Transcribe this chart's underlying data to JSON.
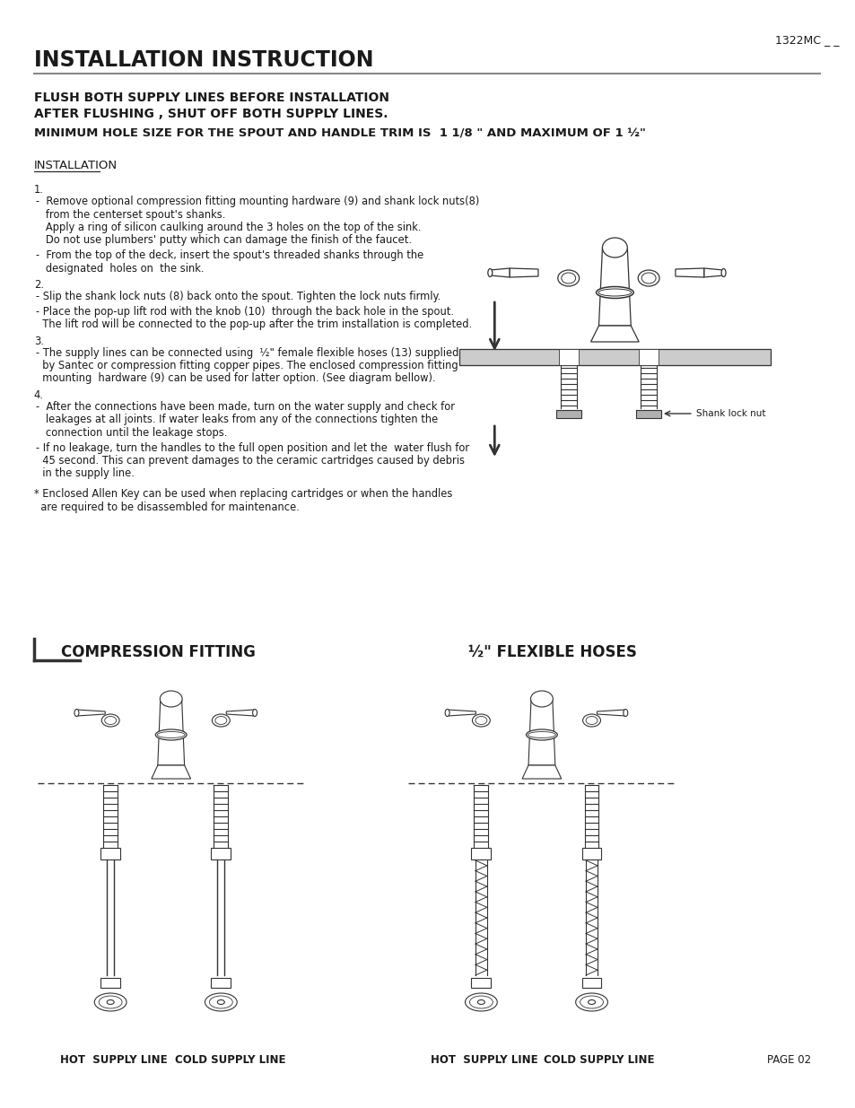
{
  "bg_color": "#ffffff",
  "page_width": 9.54,
  "page_height": 12.35,
  "model_number": "1322MC _ _",
  "title": "INSTALLATION INSTRUCTION",
  "header_lines": [
    "FLUSH BOTH SUPPLY LINES BEFORE INSTALLATION",
    "AFTER FLUSHING , SHUT OFF BOTH SUPPLY LINES.",
    "MINIMUM HOLE SIZE FOR THE SPOUT AND HANDLE TRIM IS  1 1/8 \" AND MAXIMUM OF 1 ½\""
  ],
  "installation_label": "INSTALLATION",
  "steps": [
    {
      "num": "1.",
      "bullets": [
        "-  Remove optional compression fitting mounting hardware (9) and shank lock nuts(8)\n   from the centerset spout's shanks.\n   Apply a ring of silicon caulking around the 3 holes on the top of the sink.\n   Do not use plumbers' putty which can damage the finish of the faucet.",
        "-  From the top of the deck, insert the spout's threaded shanks through the\n   designated  holes on  the sink."
      ]
    },
    {
      "num": "2.",
      "bullets": [
        "- Slip the shank lock nuts (8) back onto the spout. Tighten the lock nuts firmly.",
        "- Place the pop-up lift rod with the knob (10)  through the back hole in the spout.\n  The lift rod will be connected to the pop-up after the trim installation is completed."
      ]
    },
    {
      "num": "3.",
      "bullets": [
        "- The supply lines can be connected using  ½\" female flexible hoses (13) supplied\n  by Santec or compression fitting copper pipes. The enclosed compression fitting\n  mounting  hardware (9) can be used for latter option. (See diagram bellow)."
      ]
    },
    {
      "num": "4.",
      "bullets": [
        "-  After the connections have been made, turn on the water supply and check for\n   leakages at all joints. If water leaks from any of the connections tighten the\n   connection until the leakage stops.",
        "- If no leakage, turn the handles to the full open position and let the  water flush for\n  45 second. This can prevent damages to the ceramic cartridges caused by debris\n  in the supply line."
      ]
    }
  ],
  "footnote": "* Enclosed Allen Key can be used when replacing cartridges or when the handles\n  are required to be disassembled for maintenance.",
  "diagram_left_title": "COMPRESSION FITTING",
  "diagram_right_title": "½\" FLEXIBLE HOSES",
  "left_labels": [
    "HOT  SUPPLY LINE",
    "COLD SUPPLY LINE"
  ],
  "right_labels": [
    "HOT  SUPPLY LINE",
    "COLD SUPPLY LINE"
  ],
  "page_label": "PAGE 02",
  "shank_lock_nut_label": "Shank lock nut",
  "text_color": "#1a1a1a",
  "line_color": "#555555",
  "diagram_color": "#333333"
}
